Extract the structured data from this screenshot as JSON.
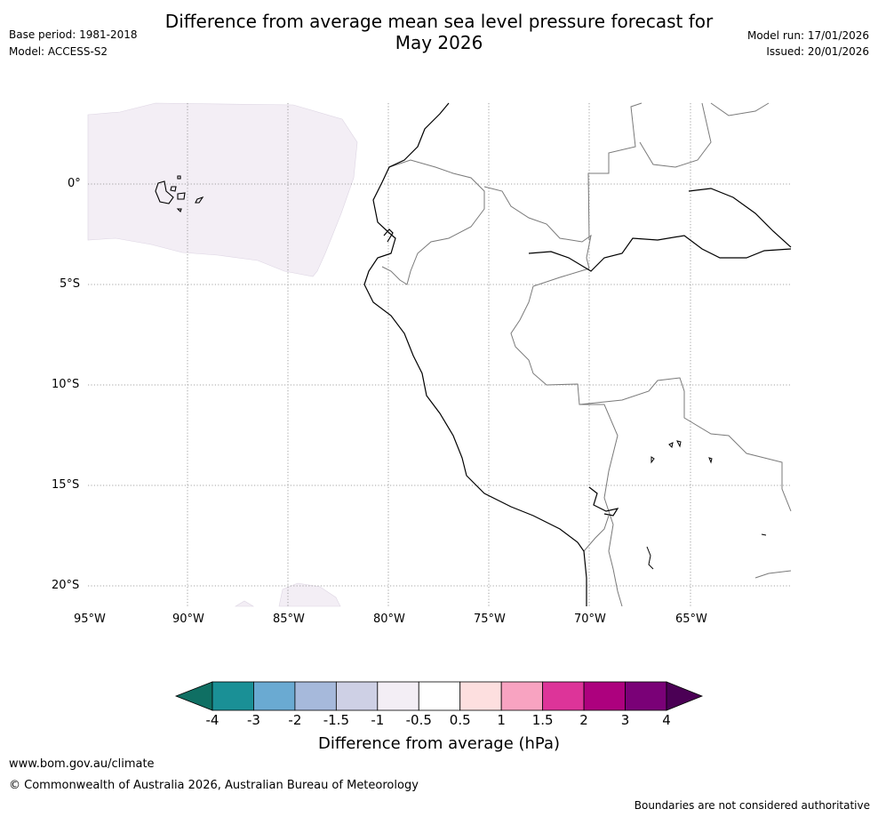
{
  "header": {
    "title_line1": "Difference from average mean sea level pressure forecast for",
    "title_line2": "May 2026",
    "base_period": "Base period: 1981-2018",
    "model": "Model: ACCESS-S2",
    "model_run": "Model run: 17/01/2026",
    "issued": "Issued: 20/01/2026"
  },
  "map": {
    "lat_labels": [
      "0°",
      "5°S",
      "10°S",
      "15°S",
      "20°S"
    ],
    "lon_labels": [
      "95°W",
      "90°W",
      "85°W",
      "80°W",
      "75°W",
      "70°W",
      "65°W"
    ]
  },
  "colorbar": {
    "ticks": [
      "-4",
      "-3",
      "-2",
      "-1.5",
      "-1",
      "-0.5",
      "0.5",
      "1",
      "1.5",
      "2",
      "3",
      "4"
    ],
    "colors": [
      "#1a9096",
      "#6aaad2",
      "#a6b9db",
      "#ced0e5",
      "#f3eef5",
      "#ffffff",
      "#fddfdf",
      "#f8a3c1",
      "#dd3499",
      "#ad017e",
      "#7a0177"
    ],
    "under_color": "#0f6f63",
    "over_color": "#4b0055",
    "label": "Difference from average (hPa)"
  },
  "footer": {
    "url": "www.bom.gov.au/climate",
    "copyright": "© Commonwealth of Australia 2026, Australian Bureau of Meteorology",
    "disclaimer": "Boundaries are not considered authoritative"
  }
}
